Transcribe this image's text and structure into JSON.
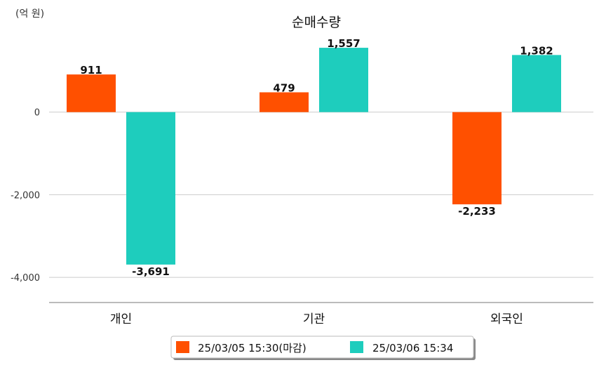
{
  "chart_data": {
    "type": "bar",
    "title": "순매수량",
    "unit_label": "(억 원)",
    "categories": [
      "개인",
      "기관",
      "외국인"
    ],
    "series": [
      {
        "name": "25/03/05 15:30(마감)",
        "color": "#FF5000",
        "values": [
          911,
          479,
          -2233
        ],
        "labels": [
          "911",
          "479",
          "-2,233"
        ]
      },
      {
        "name": "25/03/06 15:34",
        "color": "#1ECDBD",
        "values": [
          -3691,
          1557,
          1382
        ],
        "labels": [
          "-3,691",
          "1,557",
          "1,382"
        ]
      }
    ],
    "yticks": [
      0,
      -2000,
      -4000
    ],
    "ytick_labels": [
      "0",
      "-2,000",
      "-4,000"
    ],
    "ylim": [
      -4610,
      2000
    ],
    "grid": true,
    "legend_position": "bottom"
  }
}
